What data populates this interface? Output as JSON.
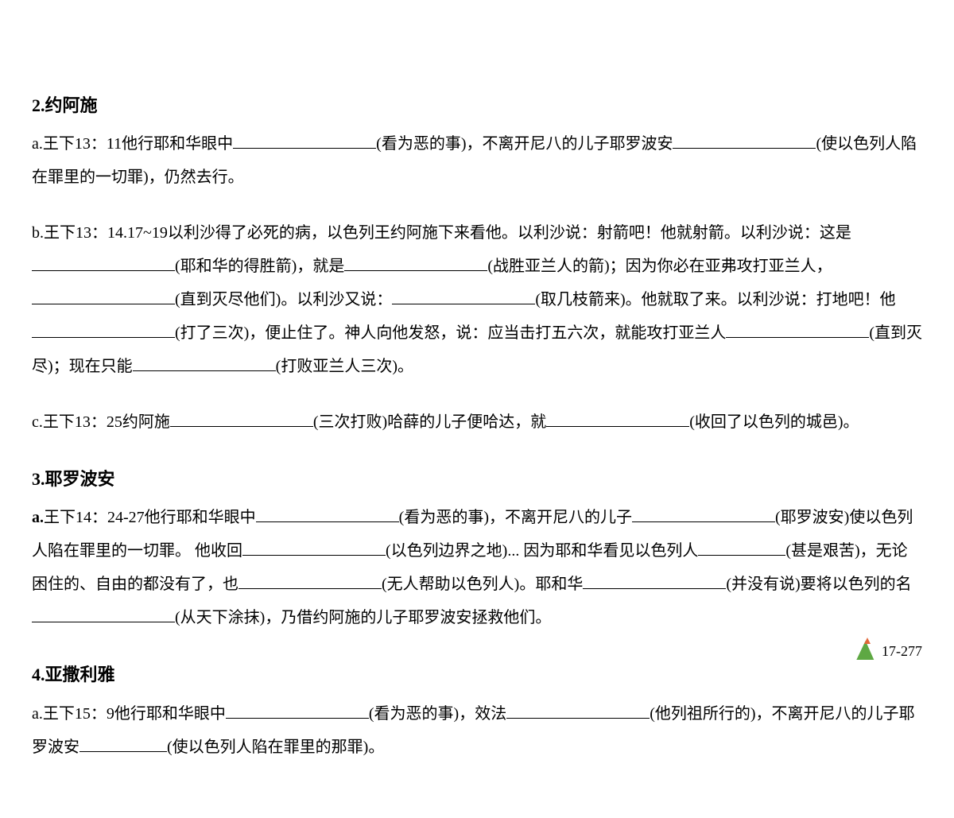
{
  "sections": [
    {
      "heading": "2.约阿施",
      "items": [
        {
          "prefix": "a.",
          "prefix_bold": false,
          "segments": [
            {
              "t": "text",
              "v": "王下13：11他行耶和华眼中"
            },
            {
              "t": "blank",
              "w": "long"
            },
            {
              "t": "text",
              "v": "(看为恶的事)，不离开尼八的儿子耶罗波安"
            },
            {
              "t": "blank",
              "w": "long"
            },
            {
              "t": "text",
              "v": "(使以色列人陷在罪里的一切罪)，仍然去行。"
            }
          ]
        },
        {
          "prefix": "b.",
          "prefix_bold": false,
          "segments": [
            {
              "t": "text",
              "v": "王下13：14.17~19以利沙得了必死的病，以色列王约阿施下来看他。以利沙说：射箭吧！他就射箭。以利沙说：这是"
            },
            {
              "t": "blank",
              "w": "long"
            },
            {
              "t": "text",
              "v": "(耶和华的得胜箭)，就是"
            },
            {
              "t": "blank",
              "w": "long"
            },
            {
              "t": "text",
              "v": "(战胜亚兰人的箭)；因为你必在亚弗攻打亚兰人，"
            },
            {
              "t": "blank",
              "w": "long"
            },
            {
              "t": "text",
              "v": "(直到灭尽他们)。以利沙又说："
            },
            {
              "t": "blank",
              "w": "long"
            },
            {
              "t": "text",
              "v": "(取几枝箭来)。他就取了来。以利沙说：打地吧！他"
            },
            {
              "t": "blank",
              "w": "long"
            },
            {
              "t": "text",
              "v": "(打了三次)，便止住了。神人向他发怒，说：应当击打五六次，就能攻打亚兰人"
            },
            {
              "t": "blank",
              "w": "long"
            },
            {
              "t": "text",
              "v": "(直到灭尽)；现在只能"
            },
            {
              "t": "blank",
              "w": "long"
            },
            {
              "t": "text",
              "v": "(打败亚兰人三次)。"
            }
          ]
        },
        {
          "prefix": " c.",
          "prefix_bold": false,
          "segments": [
            {
              "t": "text",
              "v": "王下13：25约阿施"
            },
            {
              "t": "blank",
              "w": "long"
            },
            {
              "t": "text",
              "v": "(三次打败)哈薛的儿子便哈达，就"
            },
            {
              "t": "blank",
              "w": "long"
            },
            {
              "t": "text",
              "v": "(收回了以色列的城邑)。"
            }
          ]
        }
      ]
    },
    {
      "heading": "3.耶罗波安",
      "items": [
        {
          "prefix": "a.",
          "prefix_bold": true,
          "segments": [
            {
              "t": "text",
              "v": "王下14：24-27他行耶和华眼中"
            },
            {
              "t": "blank",
              "w": "long"
            },
            {
              "t": "text",
              "v": "(看为恶的事)，不离开尼八的儿子"
            },
            {
              "t": "blank",
              "w": "long"
            },
            {
              "t": "text",
              "v": "(耶罗波安)使以色列人陷在罪里的一切罪。 他收回"
            },
            {
              "t": "blank",
              "w": "long"
            },
            {
              "t": "text",
              "v": "(以色列边界之地)... 因为耶和华看见以色列人"
            },
            {
              "t": "blank",
              "w": "short"
            },
            {
              "t": "text",
              "v": "(甚是艰苦)，无论困住的、自由的都没有了，也"
            },
            {
              "t": "blank",
              "w": "long"
            },
            {
              "t": "text",
              "v": "(无人帮助以色列人)。耶和华"
            },
            {
              "t": "blank",
              "w": "long"
            },
            {
              "t": "text",
              "v": "(并没有说)要将以色列的名"
            },
            {
              "t": "blank",
              "w": "long"
            },
            {
              "t": "text",
              "v": "(从天下涂抹)，乃借约阿施的儿子耶罗波安拯救他们。"
            }
          ]
        }
      ]
    },
    {
      "heading": "4.亚撒利雅",
      "items": [
        {
          "prefix": "a.",
          "prefix_bold": false,
          "segments": [
            {
              "t": "text",
              "v": "王下15：9他行耶和华眼中"
            },
            {
              "t": "blank",
              "w": "long"
            },
            {
              "t": "text",
              "v": "(看为恶的事)，效法"
            },
            {
              "t": "blank",
              "w": "long"
            },
            {
              "t": "text",
              "v": "(他列祖所行的)，不离开尼八的儿子耶罗波安"
            },
            {
              "t": "blank",
              "w": "short"
            },
            {
              "t": "text",
              "v": "(使以色列人陷在罪里的那罪)。"
            }
          ]
        }
      ]
    }
  ],
  "footer": {
    "page_number": "17-277"
  },
  "styling": {
    "background_color": "#ffffff",
    "text_color": "#000000",
    "body_fontsize": 20,
    "heading_fontsize": 22,
    "line_height": 2.1,
    "blank_long_width": 180,
    "blank_short_width": 110,
    "logo_green": "#5ea843",
    "logo_orange": "#e2683a"
  }
}
